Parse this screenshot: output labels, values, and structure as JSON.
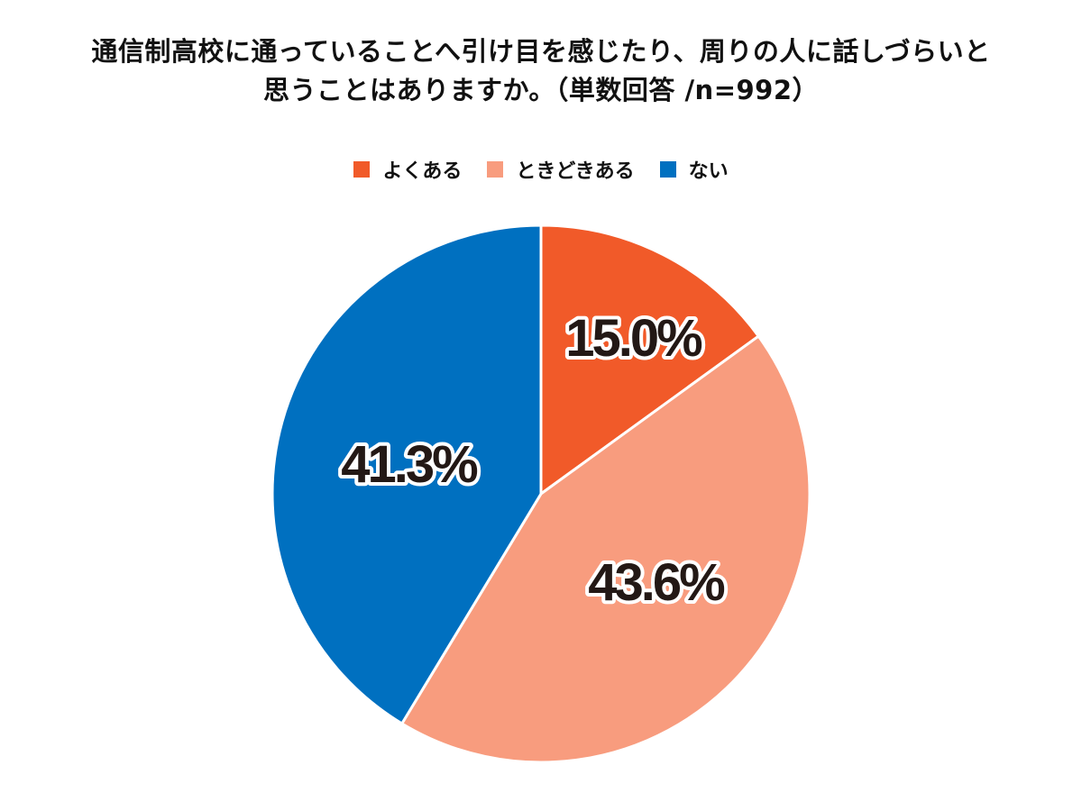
{
  "title": {
    "line1": "通信制高校に通っていることへ引け目を感じたり、周りの人に話しづらいと",
    "line2": "思うことはありますか。（単数回答 /n=992）"
  },
  "legend": [
    {
      "label": "よくある",
      "color": "#F15A29"
    },
    {
      "label": "ときどきある",
      "color": "#F89C7E"
    },
    {
      "label": "ない",
      "color": "#0070C0"
    }
  ],
  "slices": [
    {
      "label": "よくある",
      "value": 15.0,
      "display": "15.0%",
      "color": "#F15A29"
    },
    {
      "label": "ときどきある",
      "value": 43.6,
      "display": "43.6%",
      "color": "#F89C7E"
    },
    {
      "label": "ない",
      "value": 41.3,
      "display": "41.3%",
      "color": "#0070C0"
    }
  ],
  "chart_data": {
    "type": "pie",
    "title": "通信制高校に通っていることへ引け目を感じたり、周りの人に話しづらいと思うことはありますか。（単数回答 /n=992）",
    "categories": [
      "よくある",
      "ときどきある",
      "ない"
    ],
    "values": [
      15.0,
      43.6,
      41.3
    ],
    "unit": "%",
    "n": 992,
    "colors": [
      "#F15A29",
      "#F89C7E",
      "#0070C0"
    ],
    "start_angle": "12 o'clock",
    "direction": "clockwise",
    "legend_position": "top",
    "data_labels": [
      "15.0%",
      "43.6%",
      "41.3%"
    ]
  }
}
